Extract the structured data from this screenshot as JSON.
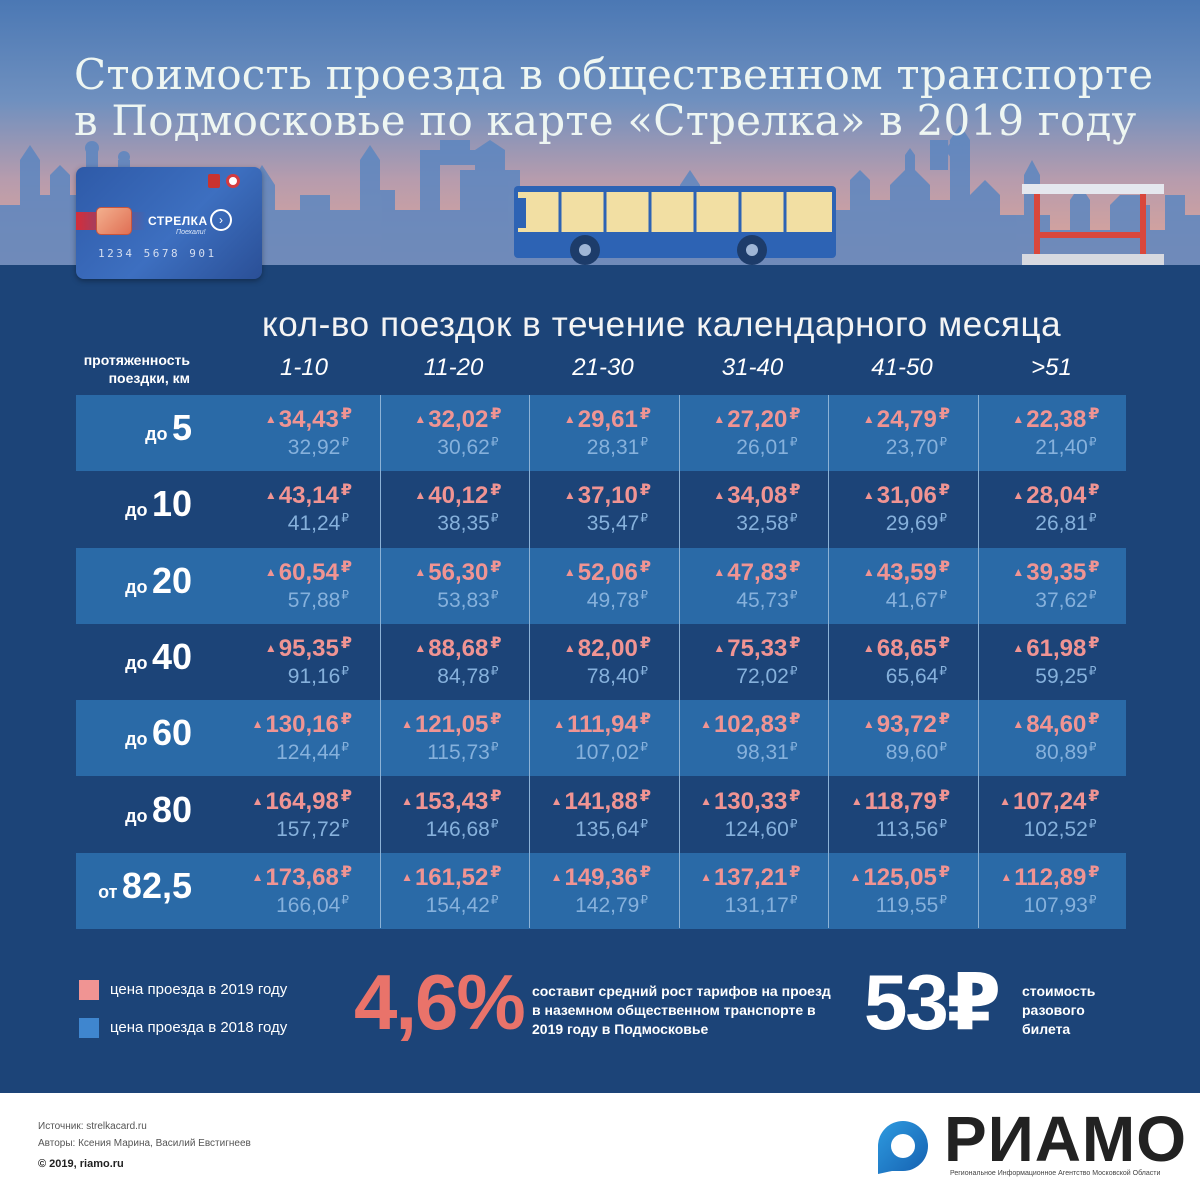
{
  "header": {
    "title_line1": "Стоимость проезда в общественном транспорте",
    "title_line2": "в Подмосковье по карте «Стрелка» в 2019 году"
  },
  "card": {
    "name": "СТРЕЛКА",
    "slogan": "Поехали!",
    "number": "1234  5678  901"
  },
  "table": {
    "subtitle": "кол-во поездок в течение календарного месяца",
    "distance_label_line1": "протяженность",
    "distance_label_line2": "поездки, км",
    "columns": [
      "1-10",
      "11-20",
      "21-30",
      "31-40",
      "41-50",
      ">51"
    ],
    "rows": [
      {
        "prefix": "до",
        "distance": "5",
        "new": [
          "34,43",
          "32,02",
          "29,61",
          "27,20",
          "24,79",
          "22,38"
        ],
        "old": [
          "32,92",
          "30,62",
          "28,31",
          "26,01",
          "23,70",
          "21,40"
        ]
      },
      {
        "prefix": "до",
        "distance": "10",
        "new": [
          "43,14",
          "40,12",
          "37,10",
          "34,08",
          "31,06",
          "28,04"
        ],
        "old": [
          "41,24",
          "38,35",
          "35,47",
          "32,58",
          "29,69",
          "26,81"
        ]
      },
      {
        "prefix": "до",
        "distance": "20",
        "new": [
          "60,54",
          "56,30",
          "52,06",
          "47,83",
          "43,59",
          "39,35"
        ],
        "old": [
          "57,88",
          "53,83",
          "49,78",
          "45,73",
          "41,67",
          "37,62"
        ]
      },
      {
        "prefix": "до",
        "distance": "40",
        "new": [
          "95,35",
          "88,68",
          "82,00",
          "75,33",
          "68,65",
          "61,98"
        ],
        "old": [
          "91,16",
          "84,78",
          "78,40",
          "72,02",
          "65,64",
          "59,25"
        ]
      },
      {
        "prefix": "до",
        "distance": "60",
        "new": [
          "130,16",
          "121,05",
          "111,94",
          "102,83",
          "93,72",
          "84,60"
        ],
        "old": [
          "124,44",
          "115,73",
          "107,02",
          "98,31",
          "89,60",
          "80,89"
        ]
      },
      {
        "prefix": "до",
        "distance": "80",
        "new": [
          "164,98",
          "153,43",
          "141,88",
          "130,33",
          "118,79",
          "107,24"
        ],
        "old": [
          "157,72",
          "146,68",
          "135,64",
          "124,60",
          "113,56",
          "102,52"
        ]
      },
      {
        "prefix": "от",
        "distance": "82,5",
        "new": [
          "173,68",
          "161,52",
          "149,36",
          "137,21",
          "125,05",
          "112,89"
        ],
        "old": [
          "166,04",
          "154,42",
          "142,79",
          "131,17",
          "119,55",
          "107,93"
        ]
      }
    ],
    "currency_symbol": "₽",
    "up_symbol": "▲"
  },
  "legend": {
    "item_2019": "цена проезда в 2019 году",
    "item_2018": "цена проезда в 2018 году",
    "color_2019": "#f09493",
    "color_2018": "#3f86cf"
  },
  "stats": {
    "growth_value": "4,6%",
    "growth_text": "составит средний рост тарифов на проезд в наземном общественном транспорте в 2019 году в Подмосковье",
    "single_value": "53₽",
    "single_text": "стоимость разового билета"
  },
  "footer": {
    "source": "Источник: strelkacard.ru",
    "authors": "Авторы: Ксения Марина, Василий Евстигнеев",
    "copyright": "© 2019, riamo.ru",
    "brand": "РИАМО",
    "brand_sub": "Региональное Информационное Агентство Московской Области"
  },
  "colors": {
    "panel": "#1c4478",
    "band": "#2a6aa7",
    "price_new": "#f09493",
    "price_old": "#86b1dc",
    "growth": "#e9736a"
  }
}
